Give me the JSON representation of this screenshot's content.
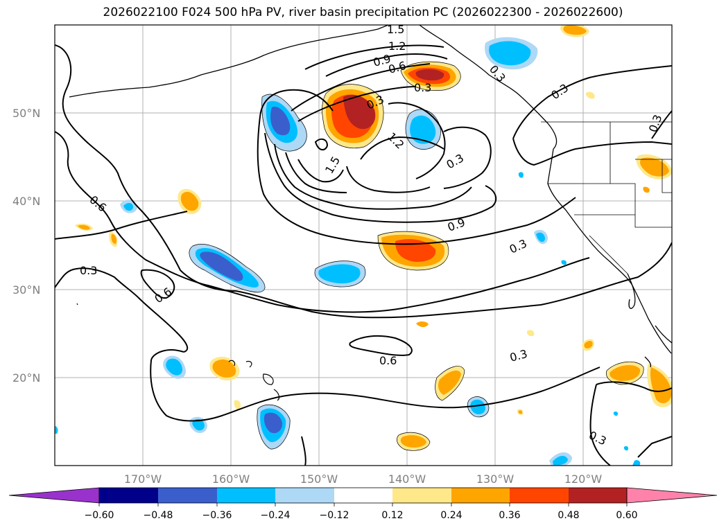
{
  "title": "2026022100 F024 500 hPa PV, river basin precipitation PC (2026022300 - 2026022600)",
  "latitude_labels": [
    "50°N",
    "40°N",
    "30°N",
    "20°N"
  ],
  "longitude_labels": [
    "170°W",
    "160°W",
    "150°W",
    "140°W",
    "130°W",
    "120°W"
  ],
  "contour_labels": [
    "1.5",
    "1.2",
    "0.9",
    "0.6",
    "0.3",
    "0.3",
    "1.2",
    "1.5",
    "0.3",
    "0.3",
    "0.3",
    "0.6",
    "0.3",
    "0.6",
    "0.9",
    "0.3",
    "0.6",
    "0.3",
    "0.3",
    "0.3"
  ],
  "colorbar": {
    "ticks": [
      "−0.60",
      "−0.48",
      "−0.36",
      "−0.24",
      "−0.12",
      "0.12",
      "0.24",
      "0.36",
      "0.48",
      "0.60"
    ],
    "colors": [
      "#9932cc",
      "#00008b",
      "#3a5fcd",
      "#00bfff",
      "#add8f6",
      "#ffffff",
      "#ffe88a",
      "#ffa500",
      "#ff4500",
      "#b22222",
      "#ff82ab"
    ]
  }
}
